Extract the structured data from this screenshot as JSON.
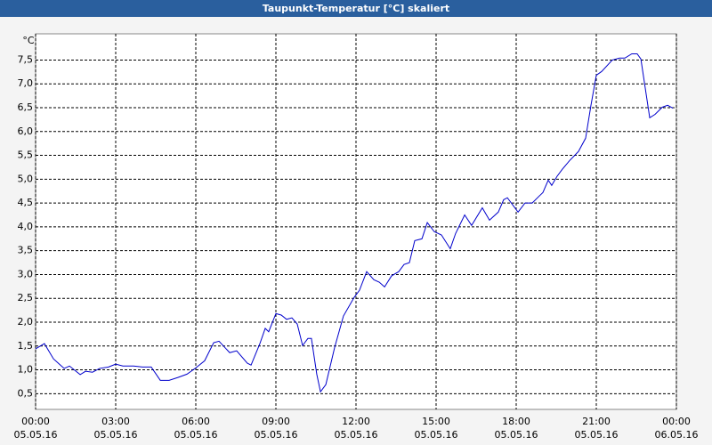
{
  "chart_data": {
    "type": "line",
    "title": "Taupunkt-Temperatur [°C] skaliert",
    "y_unit": "°C",
    "x": [
      0,
      0.33,
      0.67,
      0.93,
      1.07,
      1.27,
      1.47,
      1.67,
      1.87,
      2.13,
      2.4,
      2.73,
      3,
      3.27,
      3.67,
      4,
      4.33,
      4.67,
      5,
      5.33,
      5.67,
      6,
      6.33,
      6.67,
      6.87,
      7.27,
      7.53,
      7.93,
      8.07,
      8.4,
      8.6,
      8.73,
      9,
      9.2,
      9.4,
      9.6,
      9.8,
      10,
      10.2,
      10.33,
      10.53,
      10.67,
      10.87,
      11.2,
      11.53,
      11.93,
      12.13,
      12.4,
      12.67,
      12.87,
      13.07,
      13.33,
      13.6,
      13.8,
      14,
      14.2,
      14.47,
      14.67,
      14.93,
      15.2,
      15.53,
      15.73,
      16.07,
      16.33,
      16.73,
      17,
      17.33,
      17.53,
      17.67,
      18.07,
      18.33,
      18.6,
      18.87,
      19,
      19.2,
      19.33,
      19.53,
      19.73,
      20,
      20.33,
      20.6,
      20.8,
      21,
      21.2,
      21.6,
      21.87,
      22.07,
      22.33,
      22.53,
      22.67,
      23,
      23.2,
      23.47,
      23.67,
      23.87
    ],
    "series": [
      {
        "name": "Taupunkt",
        "color": "#0000cc",
        "values": [
          1.44,
          1.55,
          1.23,
          1.1,
          1.03,
          1.08,
          0.99,
          0.9,
          0.97,
          0.95,
          1.03,
          1.06,
          1.12,
          1.08,
          1.08,
          1.06,
          1.06,
          0.78,
          0.78,
          0.84,
          0.91,
          1.04,
          1.19,
          1.57,
          1.6,
          1.36,
          1.4,
          1.14,
          1.1,
          1.55,
          1.87,
          1.8,
          2.18,
          2.15,
          2.06,
          2.09,
          1.96,
          1.51,
          1.66,
          1.66,
          0.91,
          0.54,
          0.69,
          1.47,
          2.13,
          2.52,
          2.67,
          3.06,
          2.89,
          2.84,
          2.74,
          2.97,
          3.06,
          3.21,
          3.25,
          3.71,
          3.75,
          4.09,
          3.9,
          3.83,
          3.54,
          3.86,
          4.25,
          4.03,
          4.4,
          4.14,
          4.31,
          4.57,
          4.61,
          4.31,
          4.5,
          4.5,
          4.65,
          4.72,
          4.98,
          4.87,
          5.06,
          5.21,
          5.39,
          5.58,
          5.86,
          6.55,
          7.18,
          7.26,
          7.5,
          7.54,
          7.54,
          7.63,
          7.63,
          7.52,
          6.29,
          6.36,
          6.51,
          6.55,
          6.49
        ]
      }
    ],
    "xlim": [
      0,
      24
    ],
    "xticks": [
      {
        "value": 0,
        "label": "00:00\n05.05.16"
      },
      {
        "value": 3,
        "label": "03:00\n05.05.16"
      },
      {
        "value": 6,
        "label": "06:00\n05.05.16"
      },
      {
        "value": 9,
        "label": "09:00\n05.05.16"
      },
      {
        "value": 12,
        "label": "12:00\n05.05.16"
      },
      {
        "value": 15,
        "label": "15:00\n05.05.16"
      },
      {
        "value": 18,
        "label": "18:00\n05.05.16"
      },
      {
        "value": 21,
        "label": "21:00\n05.05.16"
      },
      {
        "value": 24,
        "label": "00:00\n06.05.16"
      }
    ],
    "ylim": [
      0.17,
      8.05
    ],
    "yticks": [
      {
        "value": 0.5,
        "label": "0,5"
      },
      {
        "value": 1,
        "label": "1,0"
      },
      {
        "value": 1.5,
        "label": "1,5"
      },
      {
        "value": 2,
        "label": "2,0"
      },
      {
        "value": 2.5,
        "label": "2,5"
      },
      {
        "value": 3,
        "label": "3,0"
      },
      {
        "value": 3.5,
        "label": "3,5"
      },
      {
        "value": 4,
        "label": "4,0"
      },
      {
        "value": 4.5,
        "label": "4,5"
      },
      {
        "value": 5,
        "label": "5,0"
      },
      {
        "value": 5.5,
        "label": "5,5"
      },
      {
        "value": 6,
        "label": "6,0"
      },
      {
        "value": 6.5,
        "label": "6,5"
      },
      {
        "value": 7,
        "label": "7,0"
      },
      {
        "value": 7.5,
        "label": "7,5"
      }
    ],
    "grid": true
  }
}
